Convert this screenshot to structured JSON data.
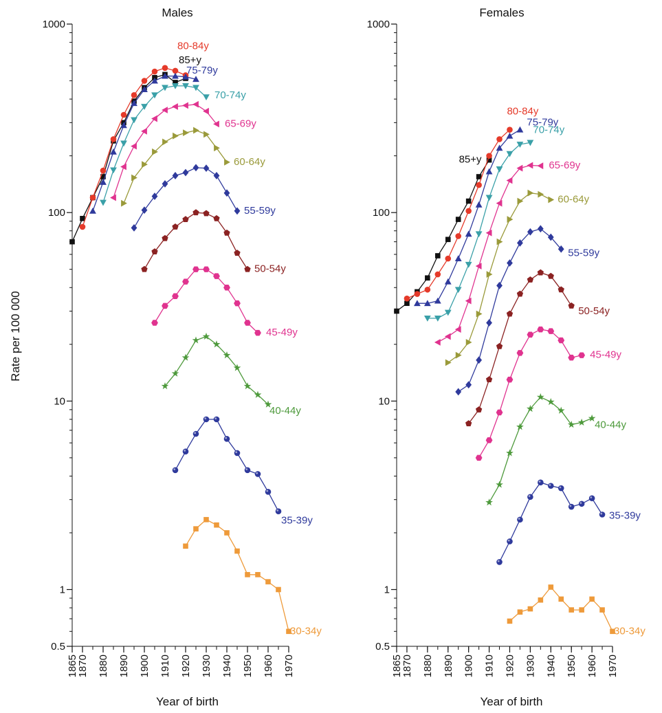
{
  "ylabel": "Rate per 100 000",
  "chart_data": [
    {
      "type": "line",
      "title": "Males",
      "xlabel": "Year of birth",
      "ylabel": "Rate per 100 000",
      "yscale": "log",
      "ylim": [
        0.5,
        1000
      ],
      "xlim": [
        1865,
        1970
      ],
      "x_ticks": [
        1865,
        1870,
        1880,
        1890,
        1900,
        1910,
        1920,
        1930,
        1940,
        1950,
        1960,
        1970
      ],
      "y_ticks": [
        0.5,
        1,
        10,
        100,
        1000
      ],
      "y_tick_labels": [
        "0.5",
        "1",
        "10",
        "100",
        "1000"
      ],
      "grid": false,
      "legend": "inline labels at series ends",
      "series": [
        {
          "name": "85+y",
          "color": "#111111",
          "marker": "square",
          "x": [
            1865,
            1870,
            1875,
            1880,
            1885,
            1890,
            1895,
            1900,
            1905,
            1910,
            1915,
            1920
          ],
          "y": [
            70,
            93,
            120,
            155,
            240,
            300,
            390,
            460,
            520,
            540,
            490,
            515
          ]
        },
        {
          "name": "80-84y",
          "color": "#e53a2a",
          "marker": "circle",
          "x": [
            1870,
            1875,
            1880,
            1885,
            1890,
            1895,
            1900,
            1905,
            1910,
            1915,
            1920
          ],
          "y": [
            84,
            120,
            167,
            245,
            330,
            420,
            500,
            560,
            585,
            565,
            535
          ]
        },
        {
          "name": "75-79y",
          "color": "#2f3a9c",
          "marker": "triangle-up",
          "x": [
            1875,
            1880,
            1885,
            1890,
            1895,
            1900,
            1905,
            1910,
            1915,
            1920,
            1925
          ],
          "y": [
            102,
            145,
            210,
            290,
            380,
            450,
            500,
            530,
            530,
            525,
            510
          ]
        },
        {
          "name": "70-74y",
          "color": "#3aa0a8",
          "marker": "triangle-down",
          "x": [
            1880,
            1885,
            1890,
            1895,
            1900,
            1905,
            1910,
            1915,
            1920,
            1925,
            1930
          ],
          "y": [
            113,
            168,
            233,
            310,
            365,
            420,
            460,
            470,
            470,
            460,
            410
          ]
        },
        {
          "name": "65-69y",
          "color": "#e0338f",
          "marker": "triangle-left",
          "x": [
            1885,
            1890,
            1895,
            1900,
            1905,
            1910,
            1915,
            1920,
            1925,
            1930,
            1935
          ],
          "y": [
            120,
            175,
            225,
            270,
            315,
            350,
            365,
            370,
            375,
            345,
            295
          ]
        },
        {
          "name": "60-64y",
          "color": "#9a9a3a",
          "marker": "triangle-right",
          "x": [
            1890,
            1895,
            1900,
            1905,
            1910,
            1915,
            1920,
            1925,
            1930,
            1935,
            1940
          ],
          "y": [
            112,
            153,
            180,
            210,
            237,
            255,
            265,
            273,
            260,
            220,
            185
          ]
        },
        {
          "name": "55-59y",
          "color": "#2f3a9c",
          "marker": "diamond",
          "x": [
            1895,
            1900,
            1905,
            1910,
            1915,
            1920,
            1925,
            1930,
            1935,
            1940,
            1945
          ],
          "y": [
            83,
            103,
            122,
            142,
            157,
            163,
            173,
            172,
            157,
            127,
            102
          ]
        },
        {
          "name": "50-54y",
          "color": "#8b2222",
          "marker": "pentagon",
          "x": [
            1900,
            1905,
            1910,
            1915,
            1920,
            1925,
            1930,
            1935,
            1940,
            1945,
            1950
          ],
          "y": [
            50,
            62,
            73,
            84,
            92,
            100,
            99,
            93,
            78,
            61,
            50
          ]
        },
        {
          "name": "45-49y",
          "color": "#e0338f",
          "marker": "hexagon",
          "x": [
            1905,
            1910,
            1915,
            1920,
            1925,
            1930,
            1935,
            1940,
            1945,
            1950,
            1955
          ],
          "y": [
            26,
            32,
            36,
            43,
            50,
            50,
            46,
            40,
            33,
            26,
            23
          ]
        },
        {
          "name": "40-44y",
          "color": "#4e9a3c",
          "marker": "star",
          "x": [
            1910,
            1915,
            1920,
            1925,
            1930,
            1935,
            1940,
            1945,
            1950,
            1955,
            1960
          ],
          "y": [
            12,
            14,
            17,
            21,
            22,
            20,
            17.5,
            15,
            12,
            10.8,
            9.6
          ]
        },
        {
          "name": "35-39y",
          "color": "#2f3a9c",
          "marker": "sphere",
          "x": [
            1915,
            1920,
            1925,
            1930,
            1935,
            1940,
            1945,
            1950,
            1955,
            1960,
            1965
          ],
          "y": [
            4.3,
            5.4,
            6.7,
            8,
            8,
            6.3,
            5.3,
            4.3,
            4.1,
            3.3,
            2.6
          ]
        },
        {
          "name": "30-34y",
          "color": "#ee9a3a",
          "marker": "square",
          "x": [
            1920,
            1925,
            1930,
            1935,
            1940,
            1945,
            1950,
            1955,
            1960,
            1965,
            1970
          ],
          "y": [
            1.7,
            2.1,
            2.35,
            2.2,
            2.0,
            1.6,
            1.2,
            1.2,
            1.1,
            1.0,
            0.6
          ]
        }
      ]
    },
    {
      "type": "line",
      "title": "Females",
      "xlabel": "Year of birth",
      "ylabel": "",
      "yscale": "log",
      "ylim": [
        0.5,
        1000
      ],
      "xlim": [
        1865,
        1970
      ],
      "x_ticks": [
        1865,
        1870,
        1880,
        1890,
        1900,
        1910,
        1920,
        1930,
        1940,
        1950,
        1960,
        1970
      ],
      "y_ticks": [
        0.5,
        1,
        10,
        100,
        1000
      ],
      "y_tick_labels": [
        "0.5",
        "1",
        "10",
        "100",
        "1000"
      ],
      "grid": false,
      "legend": "inline labels at series ends",
      "series": [
        {
          "name": "85+y",
          "color": "#111111",
          "marker": "square",
          "x": [
            1865,
            1870,
            1875,
            1880,
            1885,
            1890,
            1895,
            1900,
            1905,
            1910
          ],
          "y": [
            30,
            33,
            38,
            45,
            59,
            72,
            92,
            115,
            155,
            190
          ]
        },
        {
          "name": "80-84y",
          "color": "#e53a2a",
          "marker": "circle",
          "x": [
            1870,
            1875,
            1880,
            1885,
            1890,
            1895,
            1900,
            1905,
            1910,
            1915,
            1920
          ],
          "y": [
            35,
            37,
            39,
            47,
            57,
            75,
            102,
            140,
            200,
            245,
            275
          ]
        },
        {
          "name": "75-79y",
          "color": "#2f3a9c",
          "marker": "triangle-up",
          "x": [
            1875,
            1880,
            1885,
            1890,
            1895,
            1900,
            1905,
            1910,
            1915,
            1920,
            1925
          ],
          "y": [
            33,
            33,
            34,
            43,
            57,
            77,
            110,
            165,
            220,
            255,
            275
          ]
        },
        {
          "name": "70-74y",
          "color": "#3aa0a8",
          "marker": "triangle-down",
          "x": [
            1880,
            1885,
            1890,
            1895,
            1900,
            1905,
            1910,
            1915,
            1920,
            1925,
            1930
          ],
          "y": [
            27.5,
            27.5,
            29.5,
            39,
            53,
            77,
            120,
            170,
            205,
            230,
            235
          ]
        },
        {
          "name": "65-69y",
          "color": "#e0338f",
          "marker": "triangle-left",
          "x": [
            1885,
            1890,
            1895,
            1900,
            1905,
            1910,
            1915,
            1920,
            1925,
            1930,
            1935
          ],
          "y": [
            20.5,
            22,
            24,
            34,
            52,
            78,
            112,
            148,
            172,
            178,
            177
          ]
        },
        {
          "name": "60-64y",
          "color": "#9a9a3a",
          "marker": "triangle-right",
          "x": [
            1890,
            1895,
            1900,
            1905,
            1910,
            1915,
            1920,
            1925,
            1930,
            1935,
            1940
          ],
          "y": [
            16,
            17.5,
            20.5,
            29,
            47,
            70,
            92,
            115,
            127,
            125,
            117
          ]
        },
        {
          "name": "55-59y",
          "color": "#2f3a9c",
          "marker": "diamond",
          "x": [
            1895,
            1900,
            1905,
            1910,
            1915,
            1920,
            1925,
            1930,
            1935,
            1940,
            1945
          ],
          "y": [
            11.2,
            12.2,
            16.5,
            26,
            41,
            54,
            69,
            79,
            82,
            74,
            64
          ]
        },
        {
          "name": "50-54y",
          "color": "#8b2222",
          "marker": "pentagon",
          "x": [
            1900,
            1905,
            1910,
            1915,
            1920,
            1925,
            1930,
            1935,
            1940,
            1945,
            1950
          ],
          "y": [
            7.6,
            9,
            13,
            19.5,
            29,
            37,
            44,
            48,
            46,
            39,
            32
          ]
        },
        {
          "name": "45-49y",
          "color": "#e0338f",
          "marker": "hexagon",
          "x": [
            1905,
            1910,
            1915,
            1920,
            1925,
            1930,
            1935,
            1940,
            1945,
            1950,
            1955
          ],
          "y": [
            5,
            6.2,
            8.7,
            13,
            18,
            22.5,
            24,
            23.5,
            21,
            17,
            17.5
          ]
        },
        {
          "name": "40-44y",
          "color": "#4e9a3c",
          "marker": "star",
          "x": [
            1910,
            1915,
            1920,
            1925,
            1930,
            1935,
            1940,
            1945,
            1950,
            1955,
            1960
          ],
          "y": [
            2.9,
            3.6,
            5.3,
            7.3,
            9.1,
            10.5,
            9.9,
            8.9,
            7.5,
            7.7,
            8.1
          ]
        },
        {
          "name": "35-39y",
          "color": "#2f3a9c",
          "marker": "sphere",
          "x": [
            1915,
            1920,
            1925,
            1930,
            1935,
            1940,
            1945,
            1950,
            1955,
            1960,
            1965
          ],
          "y": [
            1.4,
            1.8,
            2.35,
            3.1,
            3.7,
            3.55,
            3.45,
            2.75,
            2.85,
            3.05,
            2.5
          ]
        },
        {
          "name": "30-34y",
          "color": "#ee9a3a",
          "marker": "square",
          "x": [
            1920,
            1925,
            1930,
            1935,
            1940,
            1945,
            1950,
            1955,
            1960,
            1965,
            1970
          ],
          "y": [
            0.68,
            0.76,
            0.79,
            0.88,
            1.03,
            0.89,
            0.78,
            0.78,
            0.89,
            0.78,
            0.6
          ]
        }
      ]
    }
  ]
}
